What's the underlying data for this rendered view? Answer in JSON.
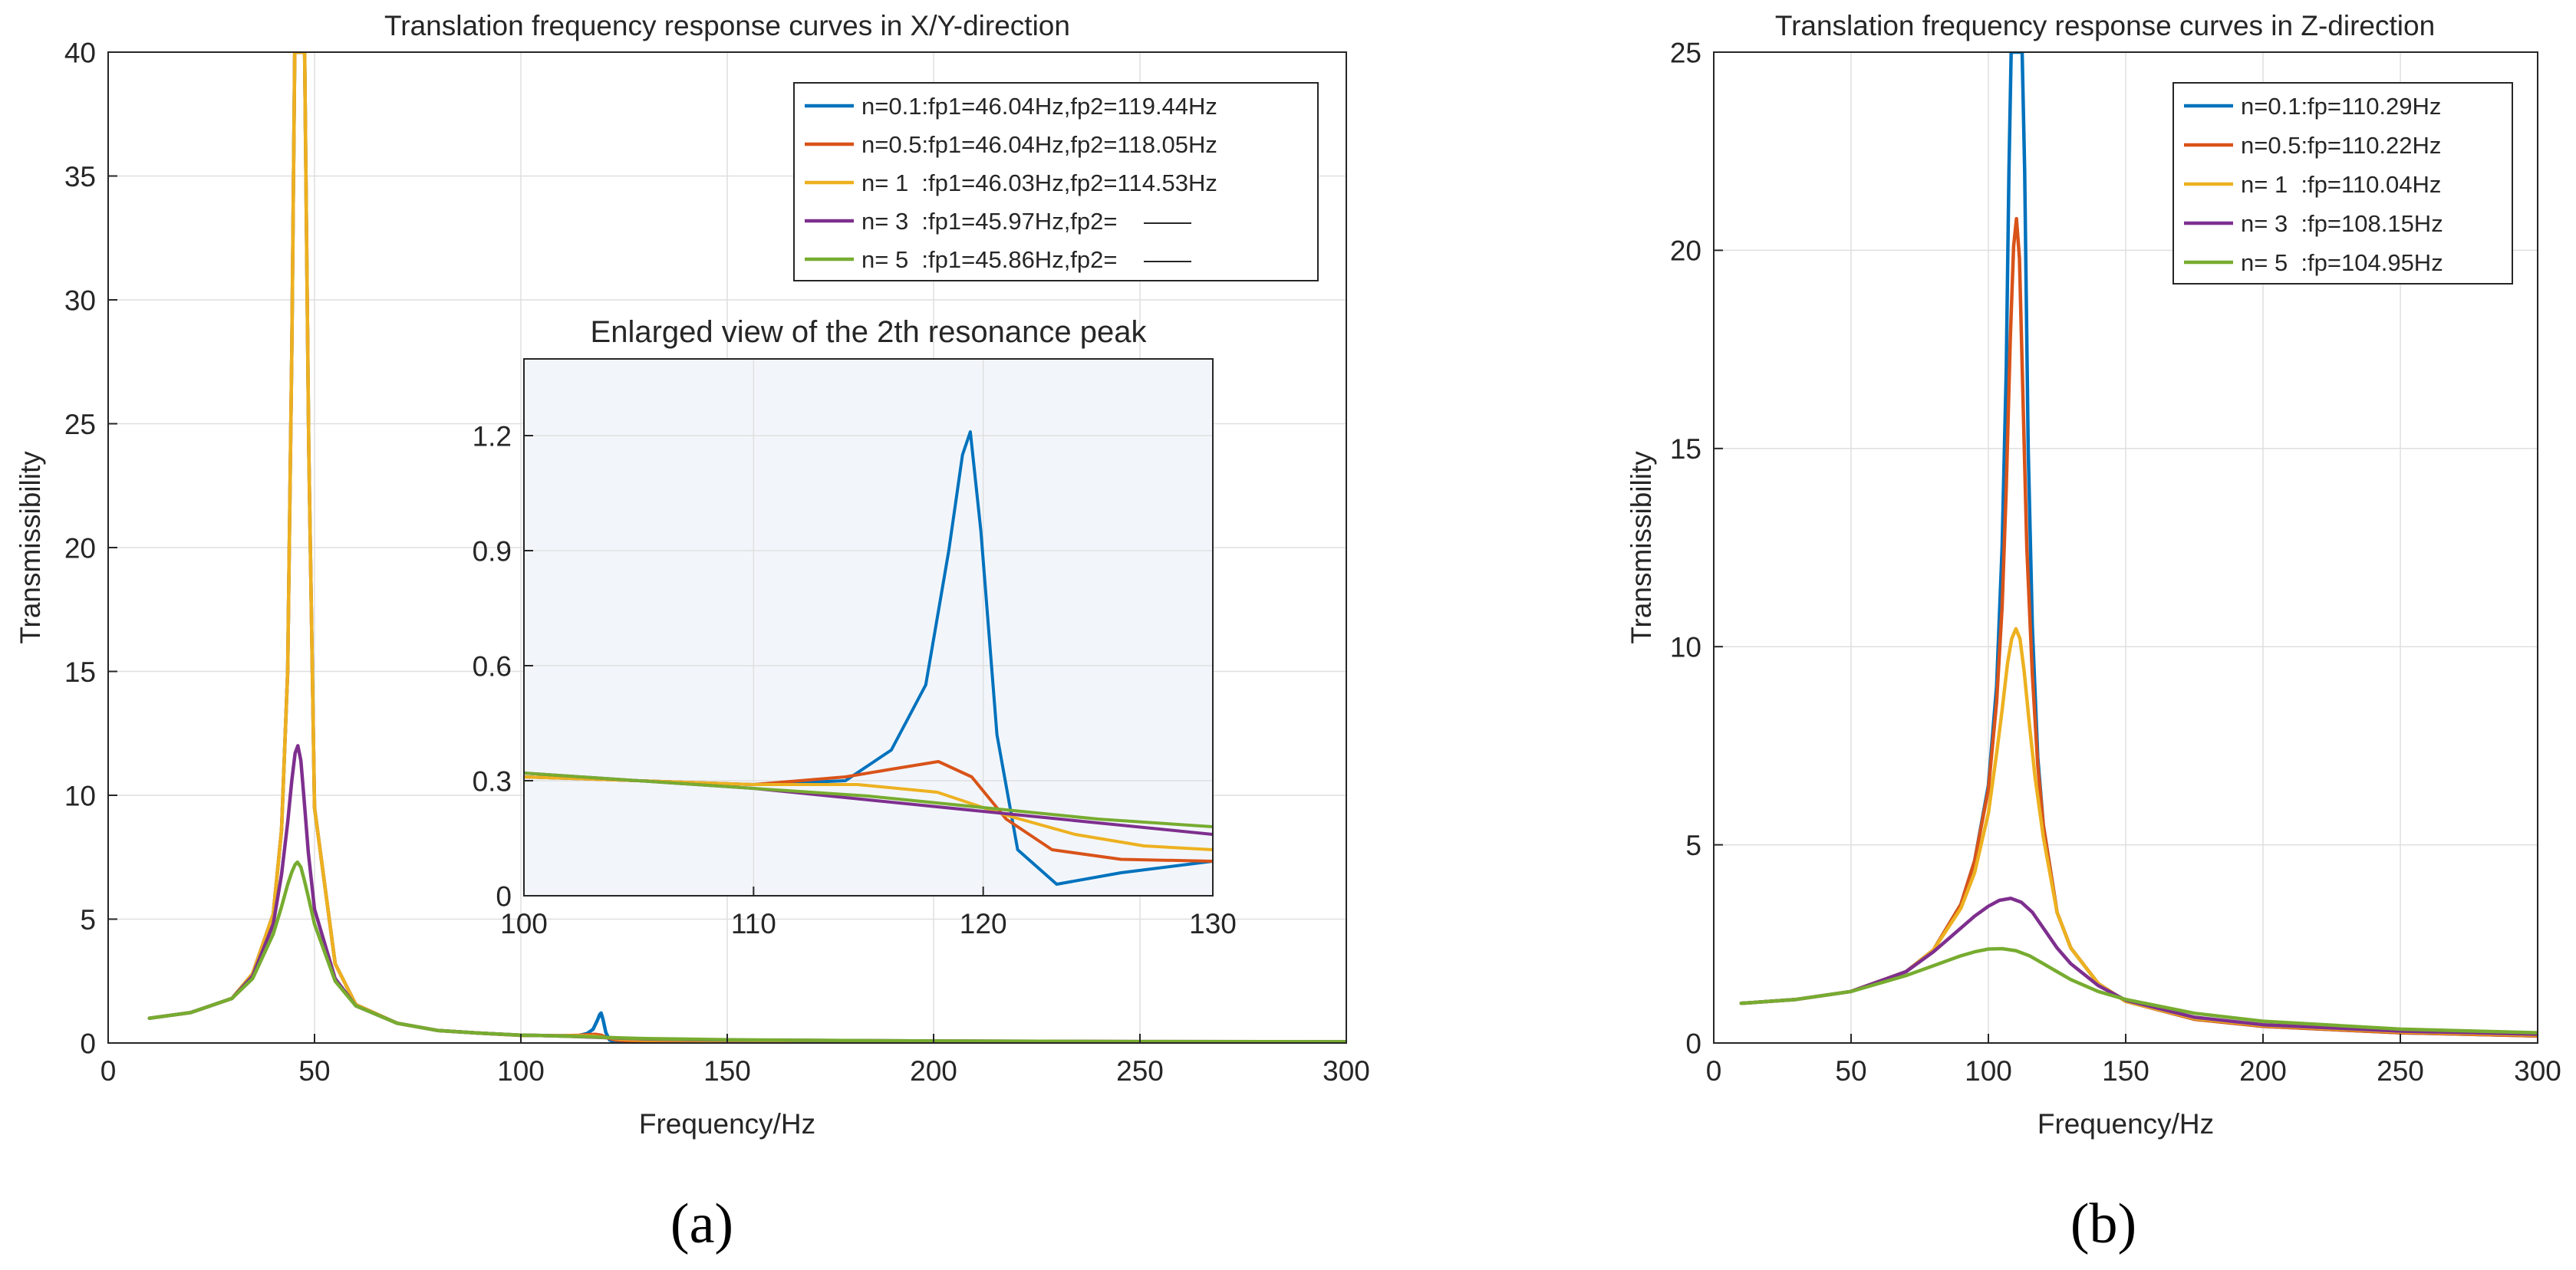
{
  "chart_data": [
    {
      "type": "line",
      "panel": "(a)",
      "title": "Translation frequency response curves in X/Y-direction",
      "xlabel": "Frequency/Hz",
      "ylabel": "Transmissibility",
      "xlim": [
        0,
        300
      ],
      "ylim": [
        0,
        40
      ],
      "xticks": [
        0,
        50,
        100,
        150,
        200,
        250,
        300
      ],
      "yticks": [
        0,
        5,
        10,
        15,
        20,
        25,
        30,
        35,
        40
      ],
      "grid": true,
      "legend_position": "top-right",
      "series": [
        {
          "name": "n=0.1:fp1=46.04Hz,fp2=119.44Hz",
          "color": "#0072BD",
          "x": [
            10,
            20,
            30,
            35,
            40,
            42,
            43.5,
            44.5,
            45.2,
            45.6,
            45.85,
            46.04,
            46.25,
            46.5,
            46.9,
            47.6,
            48.6,
            50,
            55,
            60,
            70,
            80,
            90,
            100,
            105,
            110,
            114,
            116,
            117.5,
            118.5,
            119.1,
            119.44,
            119.9,
            120.6,
            121.5,
            123.2,
            126,
            130,
            140,
            150,
            175,
            200,
            250,
            300
          ],
          "y": [
            1.0,
            1.23,
            1.8,
            2.8,
            5.2,
            8.6,
            15,
            28,
            40,
            40,
            40,
            40,
            40,
            40,
            40,
            40,
            24,
            9.5,
            3.2,
            1.55,
            0.8,
            0.5,
            0.4,
            0.31,
            0.3,
            0.29,
            0.3,
            0.38,
            0.55,
            0.9,
            1.15,
            1.21,
            0.95,
            0.42,
            0.12,
            0.03,
            0.06,
            0.09,
            0.1,
            0.09,
            0.07,
            0.06,
            0.05,
            0.04
          ]
        },
        {
          "name": "n=0.5:fp1=46.04Hz,fp2=118.05Hz",
          "color": "#D95319",
          "x": [
            10,
            20,
            30,
            35,
            40,
            42,
            43.5,
            44.5,
            45.2,
            45.6,
            46.04,
            46.5,
            46.9,
            47.6,
            48.6,
            50,
            55,
            60,
            70,
            80,
            90,
            100,
            105,
            110,
            114,
            116,
            118.05,
            119.5,
            121,
            123,
            126,
            130,
            150,
            200,
            250,
            300
          ],
          "y": [
            1.0,
            1.23,
            1.8,
            2.8,
            5.2,
            8.6,
            15,
            28,
            40,
            40,
            40,
            40,
            40,
            40,
            24,
            9.5,
            3.2,
            1.55,
            0.8,
            0.5,
            0.4,
            0.31,
            0.3,
            0.29,
            0.31,
            0.33,
            0.35,
            0.31,
            0.2,
            0.12,
            0.095,
            0.09,
            0.08,
            0.06,
            0.05,
            0.04
          ]
        },
        {
          "name": "n= 1  :fp1=46.03Hz,fp2=114.53Hz",
          "color": "#EDB120",
          "x": [
            10,
            20,
            30,
            35,
            40,
            42,
            43.5,
            44.5,
            45.2,
            45.6,
            46.03,
            46.5,
            46.9,
            47.6,
            48.6,
            50,
            55,
            60,
            70,
            80,
            90,
            100,
            105,
            110,
            114.53,
            118,
            121,
            124,
            127,
            130,
            150,
            200,
            250,
            300
          ],
          "y": [
            1.0,
            1.23,
            1.8,
            2.8,
            5.2,
            8.6,
            15,
            28,
            40,
            40,
            40,
            40,
            40,
            40,
            24,
            9.5,
            3.2,
            1.55,
            0.8,
            0.5,
            0.4,
            0.31,
            0.3,
            0.29,
            0.29,
            0.27,
            0.21,
            0.16,
            0.13,
            0.12,
            0.1,
            0.07,
            0.05,
            0.04
          ]
        },
        {
          "name": "n= 3  :fp1=45.97Hz,fp2=    ——",
          "color": "#7E2F8E",
          "x": [
            10,
            20,
            30,
            35,
            40,
            42,
            43.5,
            44.5,
            45.3,
            45.97,
            46.7,
            47.5,
            48.5,
            50,
            55,
            60,
            70,
            80,
            90,
            100,
            105,
            110,
            115,
            120,
            125,
            130,
            150,
            200,
            250,
            300
          ],
          "y": [
            1.0,
            1.23,
            1.8,
            2.7,
            4.8,
            6.8,
            8.9,
            10.6,
            11.7,
            12.0,
            11.4,
            9.8,
            7.7,
            5.4,
            2.6,
            1.5,
            0.8,
            0.5,
            0.4,
            0.32,
            0.3,
            0.28,
            0.25,
            0.22,
            0.19,
            0.16,
            0.12,
            0.08,
            0.06,
            0.05
          ]
        },
        {
          "name": "n= 5  :fp1=45.86Hz,fp2=    ——",
          "color": "#77AC30",
          "x": [
            10,
            20,
            30,
            35,
            40,
            42,
            43.5,
            44.5,
            45.3,
            45.86,
            46.7,
            47.5,
            48.5,
            50,
            55,
            60,
            70,
            80,
            90,
            100,
            105,
            110,
            115,
            120,
            125,
            130,
            150,
            200,
            250,
            300
          ],
          "y": [
            1.0,
            1.23,
            1.8,
            2.6,
            4.4,
            5.5,
            6.4,
            6.9,
            7.2,
            7.3,
            7.1,
            6.6,
            5.9,
            4.8,
            2.5,
            1.5,
            0.8,
            0.5,
            0.4,
            0.32,
            0.3,
            0.28,
            0.26,
            0.23,
            0.2,
            0.18,
            0.13,
            0.08,
            0.06,
            0.05
          ]
        }
      ],
      "inset": {
        "title": "Enlarged view of the 2th resonance peak",
        "xlim": [
          100,
          130
        ],
        "ylim": [
          0,
          1.4
        ],
        "xticks": [
          100,
          110,
          120,
          130
        ],
        "yticks": [
          0,
          0.3,
          0.6,
          0.9,
          1.2
        ],
        "ytick_labels": [
          "0",
          "0.3",
          "0.6",
          "0.9",
          "1.2"
        ]
      }
    },
    {
      "type": "line",
      "panel": "(b)",
      "title": "Translation frequency response curves in Z-direction",
      "xlabel": "Frequency/Hz",
      "ylabel": "Transmissibility",
      "xlim": [
        0,
        300
      ],
      "ylim": [
        0,
        25
      ],
      "xticks": [
        0,
        50,
        100,
        150,
        200,
        250,
        300
      ],
      "yticks": [
        0,
        5,
        10,
        15,
        20,
        25
      ],
      "grid": true,
      "legend_position": "top-right",
      "series": [
        {
          "name": "n=0.1:fp=110.29Hz",
          "color": "#0072BD",
          "x": [
            10,
            30,
            50,
            70,
            80,
            90,
            95,
            100,
            103,
            105,
            106.5,
            107.5,
            108.3,
            109,
            110.29,
            111.5,
            112.3,
            113.2,
            114.5,
            116,
            118,
            120,
            125,
            130,
            140,
            150,
            175,
            200,
            250,
            300
          ],
          "y": [
            1.0,
            1.1,
            1.3,
            1.8,
            2.35,
            3.5,
            4.6,
            6.5,
            9.0,
            12.5,
            17.0,
            22.0,
            25,
            25,
            25,
            25,
            25,
            22.0,
            15.0,
            10.5,
            7.2,
            5.5,
            3.3,
            2.4,
            1.5,
            1.05,
            0.6,
            0.42,
            0.26,
            0.18
          ]
        },
        {
          "name": "n=0.5:fp=110.22Hz",
          "color": "#D95319",
          "x": [
            10,
            30,
            50,
            70,
            80,
            90,
            95,
            100,
            103,
            105,
            106.5,
            108,
            109.2,
            110.22,
            111.3,
            112.5,
            114,
            116,
            118,
            120,
            125,
            130,
            140,
            150,
            175,
            200,
            250,
            300
          ],
          "y": [
            1.0,
            1.1,
            1.3,
            1.8,
            2.35,
            3.5,
            4.6,
            6.4,
            8.6,
            11.0,
            14.0,
            17.8,
            20.1,
            20.8,
            19.8,
            16.5,
            12.5,
            9.3,
            7.0,
            5.5,
            3.3,
            2.4,
            1.5,
            1.05,
            0.6,
            0.42,
            0.26,
            0.18
          ]
        },
        {
          "name": "n= 1  :fp=110.04Hz",
          "color": "#EDB120",
          "x": [
            10,
            30,
            50,
            70,
            80,
            90,
            95,
            100,
            103,
            105,
            107,
            108.5,
            110.04,
            111.5,
            113,
            115,
            117,
            120,
            125,
            130,
            140,
            150,
            175,
            200,
            250,
            300
          ],
          "y": [
            1.0,
            1.1,
            1.3,
            1.8,
            2.35,
            3.4,
            4.3,
            5.8,
            7.3,
            8.4,
            9.6,
            10.2,
            10.45,
            10.2,
            9.4,
            8.0,
            6.7,
            5.2,
            3.3,
            2.4,
            1.5,
            1.05,
            0.62,
            0.44,
            0.28,
            0.2
          ]
        },
        {
          "name": "n= 3  :fp=108.15Hz",
          "color": "#7E2F8E",
          "x": [
            10,
            30,
            50,
            70,
            80,
            90,
            95,
            100,
            104,
            108.15,
            112,
            116,
            120,
            125,
            130,
            140,
            150,
            175,
            200,
            250,
            300
          ],
          "y": [
            1.0,
            1.1,
            1.3,
            1.8,
            2.3,
            2.9,
            3.2,
            3.45,
            3.6,
            3.65,
            3.55,
            3.3,
            2.9,
            2.4,
            2.0,
            1.45,
            1.08,
            0.65,
            0.46,
            0.3,
            0.22
          ]
        },
        {
          "name": "n= 5  :fp=104.95Hz",
          "color": "#77AC30",
          "x": [
            10,
            30,
            50,
            70,
            80,
            90,
            95,
            100,
            104.95,
            110,
            115,
            120,
            125,
            130,
            140,
            150,
            175,
            200,
            250,
            300
          ],
          "y": [
            1.0,
            1.1,
            1.3,
            1.7,
            1.95,
            2.2,
            2.3,
            2.37,
            2.38,
            2.33,
            2.2,
            2.0,
            1.8,
            1.6,
            1.3,
            1.1,
            0.75,
            0.55,
            0.35,
            0.26
          ]
        }
      ]
    }
  ],
  "captions": {
    "a": "(a)",
    "b": "(b)"
  }
}
